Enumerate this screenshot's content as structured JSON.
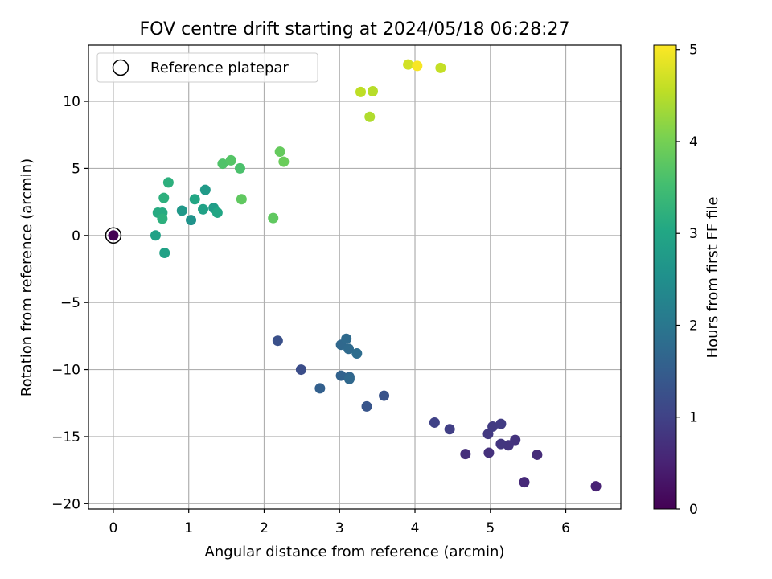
{
  "chart_data": {
    "type": "scatter",
    "title": "FOV centre drift starting at 2024/05/18 06:28:27",
    "xlabel": "Angular distance from reference (arcmin)",
    "ylabel": "Rotation from reference (arcmin)",
    "xlim": [
      -0.33,
      6.73
    ],
    "ylim": [
      -20.4,
      14.2
    ],
    "xticks": [
      0,
      1,
      2,
      3,
      4,
      5,
      6
    ],
    "yticks": [
      -20,
      -15,
      -10,
      -5,
      0,
      5,
      10
    ],
    "grid": true,
    "legend": {
      "placement": "top-left",
      "entries": [
        "Reference platepar"
      ]
    },
    "colorbar": {
      "label": "Hours from first FF file",
      "range": [
        0,
        5.05
      ],
      "ticks": [
        0,
        1,
        2,
        3,
        4,
        5
      ],
      "colormap": "viridis"
    },
    "reference_point": {
      "x": 0,
      "y": 0,
      "hours": 0
    },
    "points": [
      {
        "x": 6.4,
        "y": -18.7,
        "hours": 0.5
      },
      {
        "x": 5.45,
        "y": -18.4,
        "hours": 0.6
      },
      {
        "x": 5.62,
        "y": -16.35,
        "hours": 0.65
      },
      {
        "x": 4.67,
        "y": -16.3,
        "hours": 0.7
      },
      {
        "x": 4.98,
        "y": -16.2,
        "hours": 0.72
      },
      {
        "x": 5.33,
        "y": -15.25,
        "hours": 0.75
      },
      {
        "x": 5.24,
        "y": -15.65,
        "hours": 0.78
      },
      {
        "x": 5.14,
        "y": -15.55,
        "hours": 0.8
      },
      {
        "x": 4.97,
        "y": -14.8,
        "hours": 0.85
      },
      {
        "x": 5.03,
        "y": -14.25,
        "hours": 0.88
      },
      {
        "x": 5.14,
        "y": -14.05,
        "hours": 0.9
      },
      {
        "x": 4.46,
        "y": -14.45,
        "hours": 0.95
      },
      {
        "x": 4.26,
        "y": -13.95,
        "hours": 1.0
      },
      {
        "x": 3.59,
        "y": -11.95,
        "hours": 1.3
      },
      {
        "x": 3.36,
        "y": -12.75,
        "hours": 1.35
      },
      {
        "x": 2.49,
        "y": -10.0,
        "hours": 1.2
      },
      {
        "x": 2.18,
        "y": -7.85,
        "hours": 1.25
      },
      {
        "x": 2.74,
        "y": -11.4,
        "hours": 1.55
      },
      {
        "x": 3.02,
        "y": -10.45,
        "hours": 1.6
      },
      {
        "x": 3.13,
        "y": -10.55,
        "hours": 1.65
      },
      {
        "x": 3.13,
        "y": -10.7,
        "hours": 1.7
      },
      {
        "x": 3.02,
        "y": -8.15,
        "hours": 1.7
      },
      {
        "x": 3.09,
        "y": -7.7,
        "hours": 1.75
      },
      {
        "x": 3.12,
        "y": -8.45,
        "hours": 1.75
      },
      {
        "x": 3.23,
        "y": -8.8,
        "hours": 1.8
      },
      {
        "x": 0.56,
        "y": 0.0,
        "hours": 2.9
      },
      {
        "x": 0.68,
        "y": -1.3,
        "hours": 2.9
      },
      {
        "x": 1.03,
        "y": 1.15,
        "hours": 2.6
      },
      {
        "x": 0.91,
        "y": 1.85,
        "hours": 2.7
      },
      {
        "x": 1.19,
        "y": 1.95,
        "hours": 2.9
      },
      {
        "x": 1.33,
        "y": 2.05,
        "hours": 2.8
      },
      {
        "x": 1.38,
        "y": 1.7,
        "hours": 3.0
      },
      {
        "x": 1.08,
        "y": 2.7,
        "hours": 3.0
      },
      {
        "x": 1.22,
        "y": 3.4,
        "hours": 2.75
      },
      {
        "x": 0.59,
        "y": 1.7,
        "hours": 3.1
      },
      {
        "x": 0.65,
        "y": 1.7,
        "hours": 3.1
      },
      {
        "x": 0.65,
        "y": 1.25,
        "hours": 3.2
      },
      {
        "x": 0.67,
        "y": 2.8,
        "hours": 3.2
      },
      {
        "x": 0.73,
        "y": 3.95,
        "hours": 3.2
      },
      {
        "x": 1.45,
        "y": 5.35,
        "hours": 3.65
      },
      {
        "x": 1.56,
        "y": 5.6,
        "hours": 3.7
      },
      {
        "x": 1.68,
        "y": 5.0,
        "hours": 3.6
      },
      {
        "x": 1.7,
        "y": 2.7,
        "hours": 3.8
      },
      {
        "x": 2.12,
        "y": 1.3,
        "hours": 3.8
      },
      {
        "x": 2.21,
        "y": 6.25,
        "hours": 3.85
      },
      {
        "x": 2.26,
        "y": 5.5,
        "hours": 3.9
      },
      {
        "x": 3.28,
        "y": 10.7,
        "hours": 4.55
      },
      {
        "x": 3.44,
        "y": 10.75,
        "hours": 4.5
      },
      {
        "x": 3.4,
        "y": 8.85,
        "hours": 4.45
      },
      {
        "x": 3.91,
        "y": 12.75,
        "hours": 4.7
      },
      {
        "x": 4.03,
        "y": 12.65,
        "hours": 5.0
      },
      {
        "x": 4.34,
        "y": 12.5,
        "hours": 4.6
      }
    ]
  }
}
